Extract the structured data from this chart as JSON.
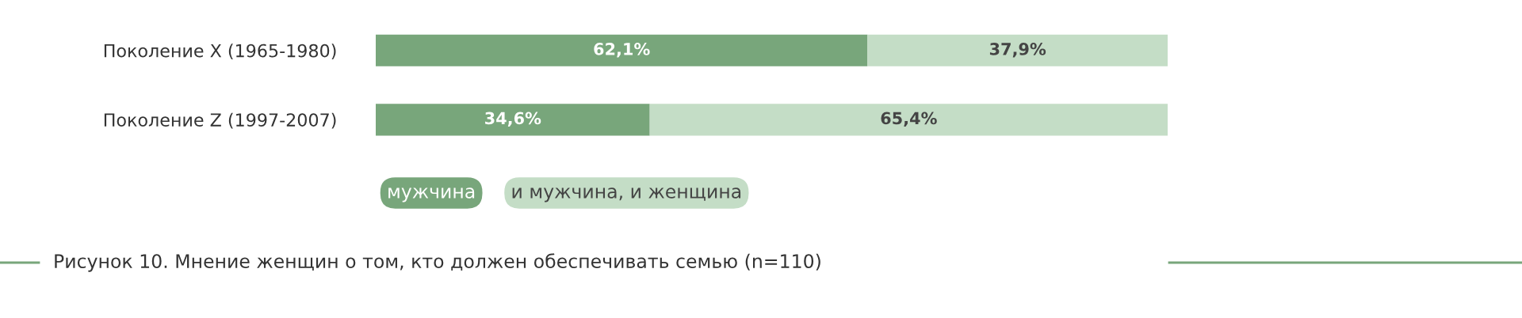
{
  "chart_data": {
    "type": "bar",
    "orientation": "horizontal",
    "stacked": true,
    "title": "Рисунок 10. Мнение женщин о том, кто должен обеспечивать семью (n=110)",
    "categories": [
      "Поколение X (1965-1980)",
      "Поколение Z (1997-2007)"
    ],
    "series": [
      {
        "name": "мужчина",
        "color": "#78a67b",
        "values": [
          62.1,
          34.6
        ],
        "value_labels": [
          "62,1%",
          "34,6%"
        ]
      },
      {
        "name": "и мужчина, и женщина",
        "color": "#c4ddc6",
        "values": [
          37.9,
          65.4
        ],
        "value_labels": [
          "37,9%",
          "65,4%"
        ]
      }
    ],
    "legend": "bottom"
  }
}
